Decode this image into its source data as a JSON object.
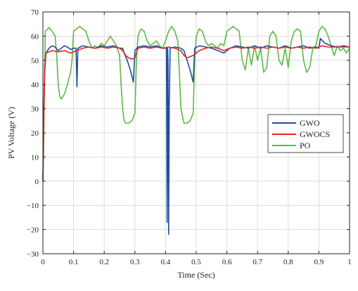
{
  "chart_data": {
    "type": "line",
    "title": "",
    "xlabel": "Time (Sec)",
    "ylabel": "PV Voltage (V)",
    "xlim": [
      0,
      1
    ],
    "ylim": [
      -30,
      70
    ],
    "xticks": [
      0,
      0.1,
      0.2,
      0.3,
      0.4,
      0.5,
      0.6,
      0.7,
      0.8,
      0.9,
      1
    ],
    "xtick_labels": [
      "0",
      "0.1",
      "0.2",
      "0.3",
      "0.4",
      "0.5",
      "0.6",
      "0.7",
      "0.8",
      "0.9",
      "1"
    ],
    "yticks": [
      -30,
      -20,
      -10,
      0,
      10,
      20,
      30,
      40,
      50,
      60,
      70
    ],
    "ytick_labels": [
      "−30",
      "−20",
      "−10",
      "0",
      "10",
      "20",
      "30",
      "40",
      "50",
      "60",
      "70"
    ],
    "grid": true,
    "legend_position": "right",
    "series": [
      {
        "name": "GWO",
        "color": "#1f4e9e",
        "points": [
          [
            0,
            0
          ],
          [
            0.003,
            30
          ],
          [
            0.006,
            48
          ],
          [
            0.01,
            53
          ],
          [
            0.02,
            55
          ],
          [
            0.03,
            56
          ],
          [
            0.04,
            55.5
          ],
          [
            0.05,
            54
          ],
          [
            0.06,
            55
          ],
          [
            0.07,
            56
          ],
          [
            0.08,
            55.5
          ],
          [
            0.09,
            54.5
          ],
          [
            0.1,
            55
          ],
          [
            0.108,
            55
          ],
          [
            0.111,
            39
          ],
          [
            0.114,
            55
          ],
          [
            0.13,
            56
          ],
          [
            0.15,
            55.5
          ],
          [
            0.17,
            55
          ],
          [
            0.19,
            56
          ],
          [
            0.21,
            55.5
          ],
          [
            0.23,
            56
          ],
          [
            0.25,
            55
          ],
          [
            0.26,
            55
          ],
          [
            0.265,
            53
          ],
          [
            0.275,
            50
          ],
          [
            0.285,
            46
          ],
          [
            0.295,
            41
          ],
          [
            0.3,
            54
          ],
          [
            0.31,
            55.5
          ],
          [
            0.33,
            56
          ],
          [
            0.35,
            55.5
          ],
          [
            0.37,
            56
          ],
          [
            0.39,
            55
          ],
          [
            0.403,
            55
          ],
          [
            0.405,
            -17
          ],
          [
            0.407,
            55
          ],
          [
            0.408,
            50
          ],
          [
            0.41,
            -22
          ],
          [
            0.412,
            31
          ],
          [
            0.415,
            55
          ],
          [
            0.43,
            55.5
          ],
          [
            0.45,
            55
          ],
          [
            0.46,
            54
          ],
          [
            0.47,
            50
          ],
          [
            0.48,
            46
          ],
          [
            0.49,
            41
          ],
          [
            0.495,
            55
          ],
          [
            0.51,
            56
          ],
          [
            0.53,
            55.5
          ],
          [
            0.55,
            55
          ],
          [
            0.57,
            54
          ],
          [
            0.59,
            53
          ],
          [
            0.61,
            55
          ],
          [
            0.63,
            56
          ],
          [
            0.65,
            55.5
          ],
          [
            0.67,
            55
          ],
          [
            0.69,
            56
          ],
          [
            0.71,
            55
          ],
          [
            0.73,
            56
          ],
          [
            0.75,
            55.5
          ],
          [
            0.77,
            55
          ],
          [
            0.79,
            56
          ],
          [
            0.81,
            55
          ],
          [
            0.83,
            55.5
          ],
          [
            0.85,
            56
          ],
          [
            0.87,
            55
          ],
          [
            0.89,
            55.5
          ],
          [
            0.9,
            55
          ],
          [
            0.905,
            59
          ],
          [
            0.92,
            57
          ],
          [
            0.94,
            56
          ],
          [
            0.96,
            55.5
          ],
          [
            0.98,
            56
          ],
          [
            1.0,
            55.5
          ]
        ]
      },
      {
        "name": "GWOCS",
        "color": "#e8231f",
        "points": [
          [
            0,
            0
          ],
          [
            0.003,
            28
          ],
          [
            0.006,
            45
          ],
          [
            0.01,
            53
          ],
          [
            0.03,
            54
          ],
          [
            0.05,
            53.5
          ],
          [
            0.07,
            54
          ],
          [
            0.09,
            53
          ],
          [
            0.11,
            54
          ],
          [
            0.13,
            55
          ],
          [
            0.15,
            55.5
          ],
          [
            0.17,
            55
          ],
          [
            0.19,
            55.5
          ],
          [
            0.21,
            55
          ],
          [
            0.23,
            55.5
          ],
          [
            0.25,
            55
          ],
          [
            0.26,
            54
          ],
          [
            0.27,
            52
          ],
          [
            0.28,
            51
          ],
          [
            0.29,
            50.5
          ],
          [
            0.3,
            51
          ],
          [
            0.31,
            55
          ],
          [
            0.33,
            55.5
          ],
          [
            0.35,
            55
          ],
          [
            0.37,
            55.5
          ],
          [
            0.39,
            55
          ],
          [
            0.41,
            55.5
          ],
          [
            0.43,
            55
          ],
          [
            0.45,
            54
          ],
          [
            0.46,
            52
          ],
          [
            0.47,
            51
          ],
          [
            0.48,
            51.5
          ],
          [
            0.49,
            52
          ],
          [
            0.5,
            53
          ],
          [
            0.51,
            54
          ],
          [
            0.53,
            55
          ],
          [
            0.55,
            55.5
          ],
          [
            0.57,
            55
          ],
          [
            0.59,
            54
          ],
          [
            0.61,
            55
          ],
          [
            0.63,
            55.5
          ],
          [
            0.65,
            55
          ],
          [
            0.67,
            55.5
          ],
          [
            0.69,
            55
          ],
          [
            0.71,
            55.5
          ],
          [
            0.73,
            55
          ],
          [
            0.75,
            55.5
          ],
          [
            0.77,
            55
          ],
          [
            0.79,
            55.5
          ],
          [
            0.81,
            55
          ],
          [
            0.83,
            55.5
          ],
          [
            0.85,
            55
          ],
          [
            0.87,
            55.5
          ],
          [
            0.89,
            55
          ],
          [
            0.91,
            56
          ],
          [
            0.93,
            55.5
          ],
          [
            0.95,
            55.5
          ],
          [
            0.97,
            55.5
          ],
          [
            1.0,
            55.5
          ]
        ]
      },
      {
        "name": "PO",
        "color": "#5cb944",
        "points": [
          [
            0,
            0
          ],
          [
            0.002,
            10
          ],
          [
            0.004,
            30
          ],
          [
            0.006,
            48
          ],
          [
            0.008,
            62
          ],
          [
            0.02,
            63.5
          ],
          [
            0.03,
            62
          ],
          [
            0.04,
            60
          ],
          [
            0.045,
            52
          ],
          [
            0.05,
            40
          ],
          [
            0.055,
            35
          ],
          [
            0.06,
            34
          ],
          [
            0.07,
            36
          ],
          [
            0.08,
            40
          ],
          [
            0.09,
            45
          ],
          [
            0.095,
            50
          ],
          [
            0.1,
            62
          ],
          [
            0.12,
            64
          ],
          [
            0.14,
            62
          ],
          [
            0.15,
            58
          ],
          [
            0.16,
            55
          ],
          [
            0.17,
            56
          ],
          [
            0.18,
            55
          ],
          [
            0.19,
            57
          ],
          [
            0.2,
            56
          ],
          [
            0.21,
            58
          ],
          [
            0.22,
            60
          ],
          [
            0.23,
            58
          ],
          [
            0.24,
            56
          ],
          [
            0.25,
            52
          ],
          [
            0.255,
            40
          ],
          [
            0.26,
            30
          ],
          [
            0.265,
            25
          ],
          [
            0.27,
            24
          ],
          [
            0.28,
            24
          ],
          [
            0.29,
            25
          ],
          [
            0.3,
            28
          ],
          [
            0.305,
            50
          ],
          [
            0.31,
            60
          ],
          [
            0.32,
            63
          ],
          [
            0.33,
            62
          ],
          [
            0.34,
            58
          ],
          [
            0.35,
            56
          ],
          [
            0.36,
            57
          ],
          [
            0.37,
            58
          ],
          [
            0.38,
            56
          ],
          [
            0.39,
            55
          ],
          [
            0.4,
            58
          ],
          [
            0.41,
            62
          ],
          [
            0.42,
            64
          ],
          [
            0.43,
            62
          ],
          [
            0.44,
            58
          ],
          [
            0.445,
            45
          ],
          [
            0.45,
            30
          ],
          [
            0.46,
            24
          ],
          [
            0.47,
            24
          ],
          [
            0.48,
            25
          ],
          [
            0.49,
            28
          ],
          [
            0.495,
            50
          ],
          [
            0.5,
            60
          ],
          [
            0.51,
            63
          ],
          [
            0.52,
            62
          ],
          [
            0.53,
            58
          ],
          [
            0.54,
            56
          ],
          [
            0.55,
            57
          ],
          [
            0.56,
            56
          ],
          [
            0.57,
            55
          ],
          [
            0.58,
            57
          ],
          [
            0.59,
            56
          ],
          [
            0.6,
            62
          ],
          [
            0.62,
            64
          ],
          [
            0.63,
            63
          ],
          [
            0.64,
            62
          ],
          [
            0.65,
            50
          ],
          [
            0.66,
            46
          ],
          [
            0.67,
            55
          ],
          [
            0.68,
            48
          ],
          [
            0.69,
            56
          ],
          [
            0.7,
            50
          ],
          [
            0.71,
            55
          ],
          [
            0.72,
            45
          ],
          [
            0.73,
            47
          ],
          [
            0.74,
            60
          ],
          [
            0.75,
            62
          ],
          [
            0.76,
            60
          ],
          [
            0.77,
            50
          ],
          [
            0.78,
            48
          ],
          [
            0.79,
            55
          ],
          [
            0.8,
            47
          ],
          [
            0.81,
            58
          ],
          [
            0.82,
            62
          ],
          [
            0.83,
            63
          ],
          [
            0.84,
            62
          ],
          [
            0.85,
            50
          ],
          [
            0.86,
            45
          ],
          [
            0.87,
            47
          ],
          [
            0.88,
            55
          ],
          [
            0.89,
            56
          ],
          [
            0.9,
            62
          ],
          [
            0.91,
            64
          ],
          [
            0.92,
            63
          ],
          [
            0.93,
            60
          ],
          [
            0.94,
            56
          ],
          [
            0.95,
            52
          ],
          [
            0.96,
            56
          ],
          [
            0.97,
            54
          ],
          [
            0.98,
            55
          ],
          [
            0.99,
            53
          ],
          [
            1.0,
            55
          ]
        ]
      }
    ]
  }
}
